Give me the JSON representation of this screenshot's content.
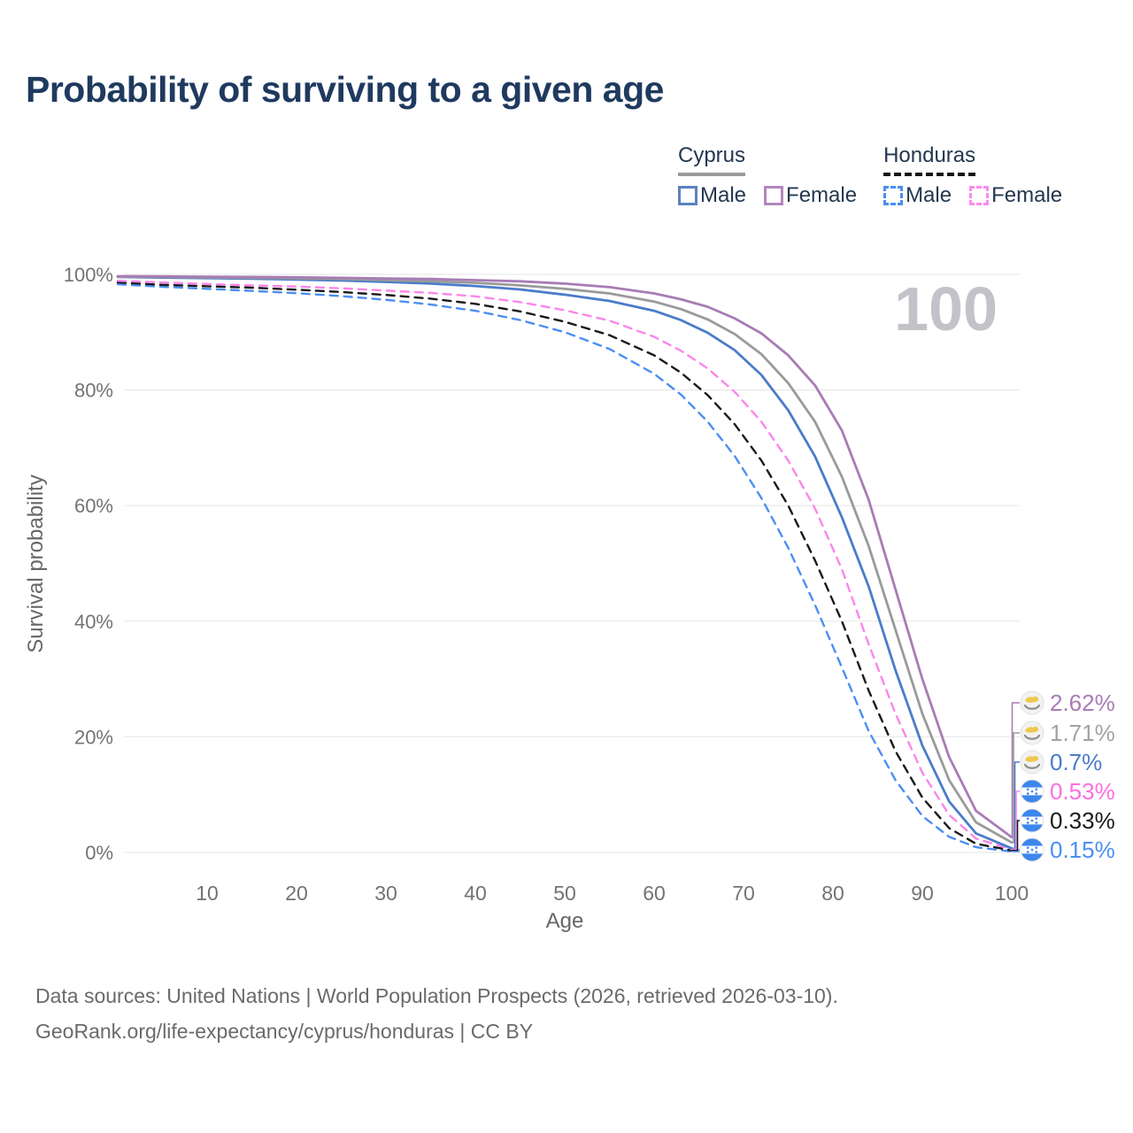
{
  "title": "Probability of surviving to a given age",
  "watermark_age": "100",
  "legend": {
    "groups": [
      {
        "country": "Cyprus",
        "line_style": "solid",
        "line_color": "#9a9a9a",
        "items": [
          {
            "label": "Male",
            "swatch_color": "#5b82be",
            "dashed": false
          },
          {
            "label": "Female",
            "swatch_color": "#b286bc",
            "dashed": false
          }
        ]
      },
      {
        "country": "Honduras",
        "line_style": "dashed",
        "line_color": "#141414",
        "items": [
          {
            "label": "Male",
            "swatch_color": "#4b8ff2",
            "dashed": true
          },
          {
            "label": "Female",
            "swatch_color": "#fc8be9",
            "dashed": true
          }
        ]
      }
    ]
  },
  "chart_data": {
    "type": "line",
    "title": "Probability of surviving to a given age",
    "xlabel": "Age",
    "ylabel": "Survival probability",
    "xlim": [
      0,
      100
    ],
    "ylim": [
      0,
      100
    ],
    "grid": "horizontal",
    "legend_position": "top-right",
    "x_ticks": [
      10,
      20,
      30,
      40,
      50,
      60,
      70,
      80,
      90,
      100
    ],
    "y_ticks": [
      0,
      20,
      40,
      60,
      80,
      100
    ],
    "y_tick_labels": [
      "0%",
      "20%",
      "40%",
      "60%",
      "80%",
      "100%"
    ],
    "x": [
      0,
      5,
      10,
      15,
      20,
      25,
      30,
      35,
      40,
      45,
      50,
      55,
      60,
      63,
      66,
      69,
      72,
      75,
      78,
      81,
      84,
      87,
      90,
      93,
      96,
      100
    ],
    "series": [
      {
        "name": "Cyprus Female",
        "country": "Cyprus",
        "sex": "Female",
        "color": "#a87cb5",
        "dashed": false,
        "flag": "cyprus",
        "end_label": "2.62%",
        "end_label_color": "#a87cb5",
        "values": [
          99.7,
          99.65,
          99.6,
          99.55,
          99.5,
          99.4,
          99.3,
          99.2,
          99.0,
          98.8,
          98.4,
          97.8,
          96.7,
          95.7,
          94.4,
          92.4,
          89.8,
          86.0,
          80.8,
          73.0,
          61.0,
          45.5,
          30.0,
          16.5,
          7.2,
          2.62
        ]
      },
      {
        "name": "Cyprus Both sexes",
        "country": "Cyprus",
        "sex": "Both",
        "color": "#9a9a9a",
        "dashed": false,
        "flag": "cyprus",
        "end_label": "1.71%",
        "end_label_color": "#a3a3a3",
        "values": [
          99.6,
          99.55,
          99.5,
          99.4,
          99.3,
          99.2,
          99.0,
          98.8,
          98.55,
          98.1,
          97.5,
          96.7,
          95.3,
          94.0,
          92.2,
          89.7,
          86.2,
          81.2,
          74.5,
          65.0,
          53.0,
          38.5,
          24.0,
          12.5,
          5.2,
          1.71
        ]
      },
      {
        "name": "Cyprus Male",
        "country": "Cyprus",
        "sex": "Male",
        "color": "#4a7cc9",
        "dashed": false,
        "flag": "cyprus",
        "end_label": "0.7%",
        "end_label_color": "#4a7cc9",
        "values": [
          99.55,
          99.45,
          99.35,
          99.25,
          99.1,
          98.95,
          98.7,
          98.4,
          98.0,
          97.4,
          96.5,
          95.4,
          93.7,
          92.1,
          89.9,
          86.9,
          82.6,
          76.5,
          68.5,
          58.0,
          46.0,
          31.5,
          18.5,
          8.8,
          3.3,
          0.7
        ]
      },
      {
        "name": "Honduras Female",
        "country": "Honduras",
        "sex": "Female",
        "color": "#fb86ea",
        "dashed": true,
        "flag": "honduras",
        "end_label": "0.53%",
        "end_label_color": "#fb6fe0",
        "values": [
          98.9,
          98.6,
          98.35,
          98.1,
          97.9,
          97.6,
          97.2,
          96.8,
          96.2,
          95.2,
          93.8,
          92.0,
          89.2,
          86.8,
          83.7,
          79.7,
          74.5,
          67.8,
          59.5,
          49.0,
          36.0,
          24.0,
          13.8,
          6.5,
          2.4,
          0.53
        ]
      },
      {
        "name": "Honduras Both sexes",
        "country": "Honduras",
        "sex": "Both",
        "color": "#1a1a1a",
        "dashed": true,
        "flag": "honduras",
        "end_label": "0.33%",
        "end_label_color": "#1a1a1a",
        "values": [
          98.6,
          98.2,
          97.95,
          97.7,
          97.35,
          96.95,
          96.45,
          95.8,
          94.9,
          93.6,
          91.8,
          89.5,
          86.0,
          83.0,
          79.1,
          74.1,
          67.8,
          60.0,
          50.5,
          40.0,
          28.0,
          17.5,
          9.5,
          4.2,
          1.5,
          0.33
        ]
      },
      {
        "name": "Honduras Male",
        "country": "Honduras",
        "sex": "Male",
        "color": "#4b8ff2",
        "dashed": true,
        "flag": "honduras",
        "end_label": "0.15%",
        "end_label_color": "#4b8ff2",
        "values": [
          98.3,
          97.85,
          97.5,
          97.15,
          96.75,
          96.25,
          95.6,
          94.8,
          93.7,
          92.1,
          90.0,
          87.1,
          82.8,
          79.2,
          74.5,
          68.6,
          61.3,
          52.7,
          42.8,
          32.0,
          21.0,
          12.5,
          6.3,
          2.7,
          0.9,
          0.15
        ]
      }
    ]
  },
  "footer": {
    "line1": "Data sources: United Nations | World Population Prospects (2026, retrieved 2026-03-10).",
    "line2": "GeoRank.org/life-expectancy/cyprus/honduras | CC BY"
  }
}
